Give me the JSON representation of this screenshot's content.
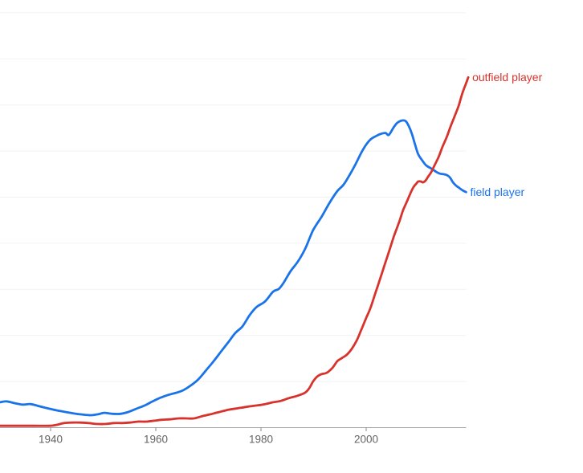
{
  "chart_data": {
    "type": "line",
    "title": "",
    "xlabel": "",
    "ylabel": "",
    "x_range": [
      1930.4,
      2019.5
    ],
    "x_ticks": [
      1940,
      1960,
      1980,
      2000
    ],
    "x_tick_labels": [
      "1940",
      "1960",
      "1980",
      "2000"
    ],
    "y_range": [
      0,
      9
    ],
    "y_gridline_step": 1,
    "y_axis_labels_visible": false,
    "grid": "horizontal-only",
    "legend_position": "line-end-labels-right",
    "colors": {
      "grid": "#f2f2f2",
      "axis": "#a6a6a6",
      "tick": "#8a8a8a",
      "tick_text": "#636363"
    },
    "series": [
      {
        "name": "field player",
        "color": "#1a73e8",
        "points": [
          [
            1930.4,
            0.55
          ],
          [
            1931.6,
            0.57
          ],
          [
            1933.2,
            0.53
          ],
          [
            1934.7,
            0.5
          ],
          [
            1936.2,
            0.51
          ],
          [
            1938.0,
            0.46
          ],
          [
            1939.8,
            0.41
          ],
          [
            1941.8,
            0.36
          ],
          [
            1943.8,
            0.32
          ],
          [
            1945.6,
            0.29
          ],
          [
            1947.5,
            0.27
          ],
          [
            1949.0,
            0.29
          ],
          [
            1950.2,
            0.32
          ],
          [
            1951.8,
            0.3
          ],
          [
            1953.3,
            0.3
          ],
          [
            1954.8,
            0.34
          ],
          [
            1956.3,
            0.41
          ],
          [
            1957.9,
            0.48
          ],
          [
            1959.4,
            0.57
          ],
          [
            1960.9,
            0.65
          ],
          [
            1962.4,
            0.71
          ],
          [
            1964.0,
            0.76
          ],
          [
            1965.2,
            0.81
          ],
          [
            1966.6,
            0.91
          ],
          [
            1968.1,
            1.05
          ],
          [
            1969.6,
            1.25
          ],
          [
            1971.0,
            1.44
          ],
          [
            1972.4,
            1.65
          ],
          [
            1973.7,
            1.84
          ],
          [
            1975.1,
            2.05
          ],
          [
            1976.5,
            2.2
          ],
          [
            1977.9,
            2.45
          ],
          [
            1979.2,
            2.62
          ],
          [
            1980.8,
            2.74
          ],
          [
            1982.3,
            2.95
          ],
          [
            1983.4,
            3.01
          ],
          [
            1984.4,
            3.16
          ],
          [
            1985.6,
            3.39
          ],
          [
            1987.0,
            3.6
          ],
          [
            1988.4,
            3.88
          ],
          [
            1989.9,
            4.28
          ],
          [
            1991.5,
            4.57
          ],
          [
            1993.0,
            4.87
          ],
          [
            1994.5,
            5.13
          ],
          [
            1995.7,
            5.27
          ],
          [
            1997.0,
            5.51
          ],
          [
            1998.0,
            5.72
          ],
          [
            1999.1,
            5.97
          ],
          [
            2000.0,
            6.14
          ],
          [
            2000.9,
            6.26
          ],
          [
            2001.8,
            6.32
          ],
          [
            2002.7,
            6.37
          ],
          [
            2003.7,
            6.39
          ],
          [
            2004.3,
            6.35
          ],
          [
            2005.2,
            6.51
          ],
          [
            2005.9,
            6.61
          ],
          [
            2006.7,
            6.66
          ],
          [
            2007.5,
            6.65
          ],
          [
            2008.1,
            6.54
          ],
          [
            2008.7,
            6.37
          ],
          [
            2009.3,
            6.14
          ],
          [
            2009.9,
            5.93
          ],
          [
            2010.7,
            5.79
          ],
          [
            2011.4,
            5.69
          ],
          [
            2012.4,
            5.62
          ],
          [
            2013.3,
            5.55
          ],
          [
            2014.0,
            5.51
          ],
          [
            2014.6,
            5.5
          ],
          [
            2015.3,
            5.48
          ],
          [
            2015.9,
            5.43
          ],
          [
            2016.5,
            5.32
          ],
          [
            2017.1,
            5.25
          ],
          [
            2017.7,
            5.2
          ],
          [
            2018.3,
            5.15
          ],
          [
            2019.0,
            5.11
          ]
        ]
      },
      {
        "name": "outfield player",
        "color": "#d7332c",
        "points": [
          [
            1930.4,
            0.04
          ],
          [
            1936.5,
            0.04
          ],
          [
            1939.8,
            0.04
          ],
          [
            1941.1,
            0.06
          ],
          [
            1942.6,
            0.1
          ],
          [
            1944.1,
            0.11
          ],
          [
            1945.6,
            0.11
          ],
          [
            1947.2,
            0.1
          ],
          [
            1948.7,
            0.08
          ],
          [
            1950.5,
            0.08
          ],
          [
            1952.1,
            0.1
          ],
          [
            1953.6,
            0.1
          ],
          [
            1955.1,
            0.11
          ],
          [
            1956.6,
            0.13
          ],
          [
            1958.2,
            0.13
          ],
          [
            1959.7,
            0.15
          ],
          [
            1961.2,
            0.17
          ],
          [
            1962.7,
            0.18
          ],
          [
            1964.3,
            0.2
          ],
          [
            1965.8,
            0.2
          ],
          [
            1967.3,
            0.2
          ],
          [
            1968.9,
            0.25
          ],
          [
            1970.4,
            0.29
          ],
          [
            1972.1,
            0.34
          ],
          [
            1973.9,
            0.39
          ],
          [
            1976.2,
            0.43
          ],
          [
            1977.7,
            0.46
          ],
          [
            1979.2,
            0.48
          ],
          [
            1980.8,
            0.51
          ],
          [
            1982.3,
            0.55
          ],
          [
            1983.8,
            0.58
          ],
          [
            1985.3,
            0.64
          ],
          [
            1986.9,
            0.69
          ],
          [
            1988.4,
            0.76
          ],
          [
            1989.2,
            0.86
          ],
          [
            1989.9,
            1.0
          ],
          [
            1990.7,
            1.11
          ],
          [
            1991.5,
            1.16
          ],
          [
            1992.5,
            1.19
          ],
          [
            1993.6,
            1.3
          ],
          [
            1994.5,
            1.44
          ],
          [
            1995.4,
            1.51
          ],
          [
            1996.3,
            1.58
          ],
          [
            1997.2,
            1.7
          ],
          [
            1998.2,
            1.89
          ],
          [
            1999.1,
            2.13
          ],
          [
            2000.0,
            2.38
          ],
          [
            2000.8,
            2.59
          ],
          [
            2001.7,
            2.9
          ],
          [
            2002.6,
            3.21
          ],
          [
            2003.5,
            3.53
          ],
          [
            2004.4,
            3.84
          ],
          [
            2005.3,
            4.16
          ],
          [
            2006.3,
            4.47
          ],
          [
            2007.0,
            4.71
          ],
          [
            2007.8,
            4.92
          ],
          [
            2008.4,
            5.08
          ],
          [
            2009.0,
            5.22
          ],
          [
            2009.5,
            5.29
          ],
          [
            2009.9,
            5.34
          ],
          [
            2010.4,
            5.34
          ],
          [
            2010.8,
            5.32
          ],
          [
            2011.3,
            5.36
          ],
          [
            2011.7,
            5.43
          ],
          [
            2012.4,
            5.55
          ],
          [
            2013.0,
            5.69
          ],
          [
            2013.8,
            5.88
          ],
          [
            2014.5,
            6.09
          ],
          [
            2015.3,
            6.3
          ],
          [
            2016.0,
            6.52
          ],
          [
            2016.8,
            6.75
          ],
          [
            2017.6,
            6.99
          ],
          [
            2018.3,
            7.26
          ],
          [
            2019.0,
            7.47
          ],
          [
            2019.4,
            7.6
          ]
        ]
      }
    ]
  }
}
